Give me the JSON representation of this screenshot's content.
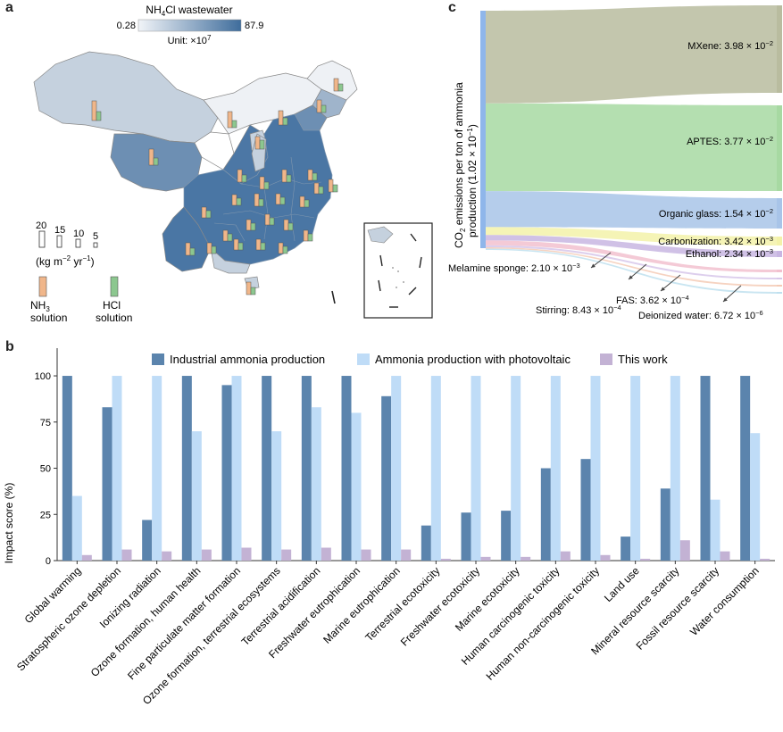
{
  "panels": {
    "a": "a",
    "b": "b",
    "c": "c"
  },
  "map": {
    "colorbar_title_pre": "NH",
    "colorbar_title_sub": "4",
    "colorbar_title_post": "Cl wastewater",
    "colorbar_min": "0.28",
    "colorbar_max": "87.9",
    "unit_pre": "Unit: ×10",
    "unit_sup": "7",
    "colorbar_color_low": "#f1f4f8",
    "colorbar_color_high": "#3f6d9c",
    "size_legend": [
      "20",
      "15",
      "10",
      "5"
    ],
    "size_unit_pre": "(kg m",
    "size_unit_sup1": "−2",
    "size_unit_mid": " yr",
    "size_unit_sup2": "−1",
    "size_unit_post": ")",
    "nh3_line1_pre": "NH",
    "nh3_line1_sub": "3",
    "nh3_line2": "solution",
    "hcl_line1": "HCl",
    "hcl_line2": "solution",
    "nh3_color": "#f0b68a",
    "hcl_color": "#8cc78f"
  },
  "sankey": {
    "y_axis_label_pre": "CO",
    "y_axis_label_sub": "2",
    "y_axis_label_mid": " emissions per ton of ammonia",
    "y_axis_label_line2_pre": "production (1.02 × 10",
    "y_axis_label_line2_sup": "−1",
    "y_axis_label_line2_post": ")",
    "flows": [
      {
        "label": "MXene",
        "mant": "3.98",
        "exp": "−2",
        "value": 0.0398,
        "color": "#b9bc9f"
      },
      {
        "label": "APTES",
        "mant": "3.77",
        "exp": "−2",
        "value": 0.0377,
        "color": "#a7d9a2"
      },
      {
        "label": "Organic glass",
        "mant": "1.54",
        "exp": "−2",
        "value": 0.0154,
        "color": "#a8c4e8"
      },
      {
        "label": "Carbonization",
        "mant": "3.42",
        "exp": "−3",
        "value": 0.00342,
        "color": "#f3f2a9"
      },
      {
        "label": "Ethanol",
        "mant": "2.34",
        "exp": "−3",
        "value": 0.00234,
        "color": "#c8b6e2"
      },
      {
        "label": "Melamine sponge",
        "mant": "2.10",
        "exp": "−3",
        "value": 0.0021,
        "color": "#f2c1cf"
      },
      {
        "label": "Stirring",
        "mant": "8.43",
        "exp": "−4",
        "value": 0.000843,
        "color": "#d7c7ea"
      },
      {
        "label": "FAS",
        "mant": "3.62",
        "exp": "−4",
        "value": 0.000362,
        "color": "#f4cbb6"
      },
      {
        "label": "Deionized water",
        "mant": "6.72",
        "exp": "−6",
        "value": 6.72e-06,
        "color": "#bfe0ef"
      }
    ],
    "source_color": "#8fb6ea"
  },
  "chart_data": {
    "type": "bar",
    "title": "",
    "xlabel": "",
    "ylabel": "Impact score (%)",
    "ylim": [
      0,
      115
    ],
    "yticks": [
      "0",
      "25",
      "50",
      "75",
      "100"
    ],
    "legend_position": "top-center",
    "categories": [
      "Global warming",
      "Stratospheric ozone depletion",
      "Ionizing radiation",
      "Ozone formation, human health",
      "Fine particulate matter formation",
      "Ozone formation, terrestrial ecosystems",
      "Terrestrial acidification",
      "Freshwater eutrophication",
      "Marine eutrophication",
      "Terrestrial ecotoxicity",
      "Freshwater ecotoxicity",
      "Marine ecotoxicity",
      "Human carcinogenic toxicity",
      "Human non-carcinogenic toxicity",
      "Land use",
      "Mineral resource scarcity",
      "Fossil resource scarcity",
      "Water consumption"
    ],
    "series": [
      {
        "name": "Industrial ammonia production",
        "color": "#5b84ad",
        "values": [
          100,
          83,
          22,
          100,
          95,
          100,
          100,
          100,
          89,
          19,
          26,
          27,
          50,
          55,
          13,
          39,
          100,
          100
        ]
      },
      {
        "name": "Ammonia production with photovoltaic",
        "color": "#bfdcf7",
        "values": [
          35,
          100,
          100,
          70,
          100,
          70,
          83,
          80,
          100,
          100,
          100,
          100,
          100,
          100,
          100,
          100,
          33,
          69
        ]
      },
      {
        "name": "This work",
        "color": "#c3b2d4",
        "values": [
          3,
          6,
          5,
          6,
          7,
          6,
          7,
          6,
          6,
          1,
          2,
          2,
          5,
          3,
          1,
          11,
          5,
          1
        ]
      }
    ]
  }
}
